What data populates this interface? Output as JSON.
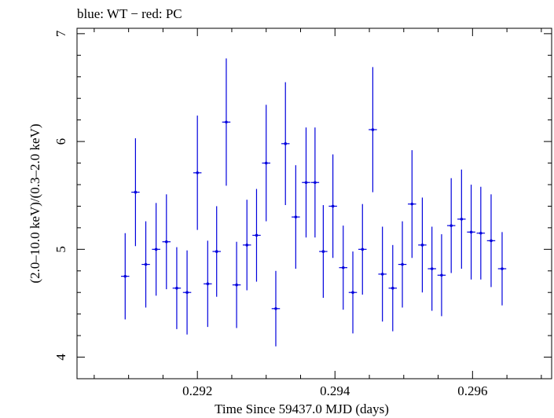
{
  "chart_data": {
    "type": "scatter",
    "title": "blue: WT − red: PC",
    "xlabel": "Time Since 59437.0 MJD (days)",
    "ylabel": "(2.0–10.0 keV)/(0.3–2.0 keV)",
    "xlim": [
      0.29025,
      0.29715
    ],
    "ylim": [
      3.8,
      7.05
    ],
    "xticks_major": [
      0.292,
      0.294,
      0.296
    ],
    "xtick_labels": [
      "0.292",
      "0.294",
      "0.296"
    ],
    "yticks_major": [
      4,
      5,
      6,
      7
    ],
    "ytick_labels": [
      "4",
      "5",
      "6",
      "7"
    ],
    "grid": false,
    "series": [
      {
        "color": "#0000dd",
        "x": [
          0.29095,
          0.2911,
          0.29125,
          0.2914,
          0.29155,
          0.2917,
          0.29185,
          0.292,
          0.29215,
          0.29228,
          0.29242,
          0.29257,
          0.29272,
          0.29286,
          0.293,
          0.29314,
          0.29328,
          0.29343,
          0.29358,
          0.29371,
          0.29383,
          0.29397,
          0.29412,
          0.29426,
          0.2944,
          0.29455,
          0.29469,
          0.29484,
          0.29498,
          0.29512,
          0.29527,
          0.29541,
          0.29555,
          0.29569,
          0.29584,
          0.29598,
          0.29612,
          0.29627,
          0.29643
        ],
        "y": [
          4.75,
          5.53,
          4.86,
          5.0,
          5.07,
          4.64,
          4.6,
          5.71,
          4.68,
          4.98,
          6.18,
          4.67,
          5.04,
          5.13,
          5.8,
          4.45,
          5.98,
          5.3,
          5.62,
          5.62,
          4.98,
          5.4,
          4.83,
          4.6,
          5.0,
          6.11,
          4.77,
          4.64,
          4.86,
          5.42,
          5.04,
          4.82,
          4.76,
          5.22,
          5.28,
          5.16,
          5.15,
          5.08,
          4.82
        ],
        "yerr": [
          0.4,
          0.5,
          0.4,
          0.43,
          0.44,
          0.38,
          0.39,
          0.53,
          0.4,
          0.42,
          0.59,
          0.4,
          0.42,
          0.43,
          0.54,
          0.35,
          0.57,
          0.48,
          0.51,
          0.51,
          0.43,
          0.48,
          0.39,
          0.38,
          0.42,
          0.58,
          0.44,
          0.4,
          0.4,
          0.5,
          0.44,
          0.39,
          0.38,
          0.44,
          0.46,
          0.44,
          0.43,
          0.43,
          0.34
        ],
        "xerr": 6e-05
      }
    ]
  }
}
